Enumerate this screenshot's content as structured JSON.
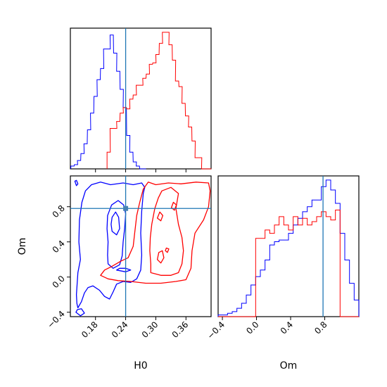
{
  "chart_data": [
    {
      "type": "histogram",
      "panel": "H0 marginal",
      "xlim": [
        0.13,
        0.41
      ],
      "truth": 0.24,
      "series": [
        {
          "color": "#0000ff",
          "bin_width": 0.0065,
          "x": [
            0.131,
            0.138,
            0.144,
            0.151,
            0.157,
            0.164,
            0.17,
            0.177,
            0.183,
            0.19,
            0.196,
            0.203,
            0.209,
            0.216,
            0.222,
            0.229,
            0.235,
            0.242,
            0.248,
            0.255,
            0.261,
            0.268,
            0.274
          ],
          "counts": [
            2,
            3,
            6,
            11,
            18,
            28,
            40,
            52,
            64,
            72,
            86,
            86,
            96,
            83,
            70,
            57,
            44,
            24,
            12,
            5,
            2,
            0,
            0
          ]
        },
        {
          "color": "#ff0000",
          "bin_width": 0.0065,
          "x": [
            0.203,
            0.209,
            0.216,
            0.222,
            0.229,
            0.235,
            0.242,
            0.248,
            0.255,
            0.261,
            0.268,
            0.274,
            0.281,
            0.287,
            0.294,
            0.3,
            0.307,
            0.313,
            0.32,
            0.326,
            0.333,
            0.339,
            0.346,
            0.352,
            0.359,
            0.365,
            0.372,
            0.378,
            0.385,
            0.391,
            0.398,
            0.404
          ],
          "counts": [
            12,
            29,
            29,
            34,
            40,
            44,
            43,
            50,
            53,
            60,
            60,
            65,
            68,
            75,
            76,
            82,
            90,
            98,
            98,
            89,
            78,
            63,
            59,
            47,
            38,
            30,
            20,
            8,
            8,
            0,
            0,
            0
          ]
        }
      ]
    },
    {
      "type": "histogram",
      "panel": "Om marginal",
      "xlim": [
        -0.45,
        1.2
      ],
      "xticks": [
        -0.4,
        0.0,
        0.4,
        0.8
      ],
      "xtick_labels": [
        "−0.4",
        "0.0",
        "0.4",
        "0.8"
      ],
      "xlabel": "Om",
      "truth": 0.78,
      "series": [
        {
          "color": "#0000ff",
          "bin_width": 0.055,
          "x": [
            -0.45,
            -0.395,
            -0.34,
            -0.285,
            -0.23,
            -0.175,
            -0.12,
            -0.065,
            -0.01,
            0.045,
            0.1,
            0.155,
            0.21,
            0.265,
            0.32,
            0.375,
            0.43,
            0.485,
            0.54,
            0.595,
            0.65,
            0.705,
            0.76,
            0.815,
            0.87,
            0.925,
            0.98,
            1.035,
            1.09,
            1.145
          ],
          "counts": [
            1,
            1,
            2,
            3,
            5,
            8,
            13,
            19,
            24,
            28,
            34,
            43,
            45,
            46,
            46,
            50,
            55,
            59,
            63,
            66,
            70,
            70,
            78,
            82,
            76,
            68,
            50,
            34,
            20,
            10
          ]
        },
        {
          "color": "#ff0000",
          "bin_width": 0.055,
          "x": [
            -0.45,
            -0.395,
            -0.34,
            -0.285,
            -0.23,
            -0.175,
            -0.12,
            -0.065,
            -0.01,
            0.045,
            0.1,
            0.155,
            0.21,
            0.265,
            0.32,
            0.375,
            0.43,
            0.485,
            0.54,
            0.595,
            0.65,
            0.705,
            0.76,
            0.815,
            0.87,
            0.925,
            0.98,
            1.035,
            1.09,
            1.145
          ],
          "counts": [
            0,
            0,
            0,
            0,
            0,
            0,
            0,
            0,
            47,
            47,
            52,
            50,
            55,
            60,
            55,
            52,
            60,
            55,
            59,
            55,
            57,
            60,
            63,
            60,
            58,
            64,
            0,
            0,
            0,
            0
          ]
        }
      ]
    },
    {
      "type": "contour",
      "panel": "H0 vs Om",
      "xlim": [
        0.13,
        0.41
      ],
      "ylim": [
        -0.45,
        1.15
      ],
      "xticks": [
        0.18,
        0.24,
        0.3,
        0.36
      ],
      "xtick_labels": [
        "0.18",
        "0.24",
        "0.30",
        "0.36"
      ],
      "yticks": [
        -0.4,
        0.0,
        0.4,
        0.8
      ],
      "ytick_labels": [
        "−0.4",
        "0.0",
        "0.4",
        "0.8"
      ],
      "xlabel": "H0",
      "ylabel": "Om",
      "truth": {
        "x": 0.24,
        "y": 0.78
      },
      "contours": [
        {
          "color": "#0000ff",
          "level": "outer",
          "points": [
            [
              0.145,
              -0.35
            ],
            [
              0.152,
              -0.28
            ],
            [
              0.158,
              -0.18
            ],
            [
              0.165,
              -0.12
            ],
            [
              0.175,
              -0.1
            ],
            [
              0.188,
              -0.15
            ],
            [
              0.198,
              -0.22
            ],
            [
              0.208,
              -0.25
            ],
            [
              0.215,
              -0.17
            ],
            [
              0.222,
              -0.08
            ],
            [
              0.235,
              -0.05
            ],
            [
              0.25,
              -0.06
            ],
            [
              0.262,
              -0.02
            ],
            [
              0.27,
              0.08
            ],
            [
              0.272,
              0.25
            ],
            [
              0.27,
              0.5
            ],
            [
              0.272,
              0.75
            ],
            [
              0.275,
              0.95
            ],
            [
              0.278,
              1.02
            ],
            [
              0.272,
              1.07
            ],
            [
              0.255,
              1.05
            ],
            [
              0.235,
              1.07
            ],
            [
              0.21,
              1.05
            ],
            [
              0.19,
              1.08
            ],
            [
              0.172,
              1.05
            ],
            [
              0.16,
              0.98
            ],
            [
              0.153,
              0.85
            ],
            [
              0.148,
              0.65
            ],
            [
              0.147,
              0.4
            ],
            [
              0.15,
              0.2
            ],
            [
              0.145,
              0.05
            ],
            [
              0.142,
              -0.2
            ],
            [
              0.143,
              -0.3
            ],
            [
              0.145,
              -0.35
            ]
          ]
        },
        {
          "color": "#0000ff",
          "level": "inner",
          "points": [
            [
              0.205,
              0.15
            ],
            [
              0.215,
              0.1
            ],
            [
              0.228,
              0.14
            ],
            [
              0.233,
              0.24
            ],
            [
              0.235,
              0.4
            ],
            [
              0.238,
              0.55
            ],
            [
              0.24,
              0.72
            ],
            [
              0.236,
              0.82
            ],
            [
              0.225,
              0.87
            ],
            [
              0.212,
              0.82
            ],
            [
              0.204,
              0.7
            ],
            [
              0.203,
              0.55
            ],
            [
              0.205,
              0.4
            ],
            [
              0.204,
              0.25
            ],
            [
              0.205,
              0.15
            ]
          ]
        },
        {
          "color": "#0000ff",
          "level": "core",
          "points": [
            [
              0.213,
              0.52
            ],
            [
              0.222,
              0.48
            ],
            [
              0.228,
              0.55
            ],
            [
              0.226,
              0.68
            ],
            [
              0.22,
              0.74
            ],
            [
              0.213,
              0.68
            ],
            [
              0.211,
              0.6
            ],
            [
              0.213,
              0.52
            ]
          ]
        },
        {
          "color": "#0000ff",
          "level": "island",
          "points": [
            [
              0.222,
              0.08
            ],
            [
              0.24,
              0.06
            ],
            [
              0.25,
              0.08
            ],
            [
              0.24,
              0.1
            ],
            [
              0.228,
              0.1
            ],
            [
              0.222,
              0.08
            ]
          ]
        },
        {
          "color": "#0000ff",
          "level": "island",
          "points": [
            [
              0.141,
              -0.4
            ],
            [
              0.15,
              -0.44
            ],
            [
              0.158,
              -0.41
            ],
            [
              0.152,
              -0.36
            ],
            [
              0.144,
              -0.37
            ],
            [
              0.141,
              -0.4
            ]
          ]
        },
        {
          "color": "#0000ff",
          "level": "island",
          "points": [
            [
              0.139,
              1.09
            ],
            [
              0.142,
              1.04
            ],
            [
              0.145,
              1.06
            ],
            [
              0.142,
              1.1
            ],
            [
              0.139,
              1.09
            ]
          ]
        },
        {
          "color": "#ff0000",
          "level": "outer",
          "points": [
            [
              0.19,
              0.02
            ],
            [
              0.205,
              -0.02
            ],
            [
              0.225,
              -0.04
            ],
            [
              0.25,
              -0.05
            ],
            [
              0.28,
              -0.07
            ],
            [
              0.31,
              -0.07
            ],
            [
              0.34,
              -0.05
            ],
            [
              0.36,
              -0.03
            ],
            [
              0.37,
              0.1
            ],
            [
              0.372,
              0.3
            ],
            [
              0.378,
              0.5
            ],
            [
              0.395,
              0.65
            ],
            [
              0.405,
              0.8
            ],
            [
              0.408,
              0.98
            ],
            [
              0.405,
              1.07
            ],
            [
              0.38,
              1.08
            ],
            [
              0.35,
              1.06
            ],
            [
              0.325,
              1.07
            ],
            [
              0.3,
              1.05
            ],
            [
              0.285,
              1.08
            ],
            [
              0.275,
              1.0
            ],
            [
              0.268,
              0.85
            ],
            [
              0.262,
              0.7
            ],
            [
              0.258,
              0.5
            ],
            [
              0.255,
              0.35
            ],
            [
              0.245,
              0.22
            ],
            [
              0.23,
              0.18
            ],
            [
              0.212,
              0.12
            ],
            [
              0.198,
              0.08
            ],
            [
              0.19,
              0.02
            ]
          ]
        },
        {
          "color": "#ff0000",
          "level": "inner",
          "points": [
            [
              0.29,
              0.05
            ],
            [
              0.31,
              0.02
            ],
            [
              0.33,
              0.02
            ],
            [
              0.345,
              0.05
            ],
            [
              0.352,
              0.15
            ],
            [
              0.355,
              0.3
            ],
            [
              0.352,
              0.45
            ],
            [
              0.345,
              0.6
            ],
            [
              0.34,
              0.78
            ],
            [
              0.345,
              0.95
            ],
            [
              0.33,
              1.02
            ],
            [
              0.312,
              0.98
            ],
            [
              0.305,
              0.9
            ],
            [
              0.298,
              0.78
            ],
            [
              0.292,
              0.6
            ],
            [
              0.289,
              0.45
            ],
            [
              0.288,
              0.3
            ],
            [
              0.29,
              0.15
            ],
            [
              0.29,
              0.05
            ]
          ]
        },
        {
          "color": "#ff0000",
          "level": "core",
          "points": [
            [
              0.303,
              0.2
            ],
            [
              0.31,
              0.16
            ],
            [
              0.316,
              0.22
            ],
            [
              0.313,
              0.3
            ],
            [
              0.306,
              0.28
            ],
            [
              0.303,
              0.2
            ]
          ]
        },
        {
          "color": "#ff0000",
          "level": "island",
          "points": [
            [
              0.303,
              0.67
            ],
            [
              0.31,
              0.64
            ],
            [
              0.314,
              0.7
            ],
            [
              0.308,
              0.74
            ],
            [
              0.303,
              0.67
            ]
          ]
        },
        {
          "color": "#ff0000",
          "level": "island",
          "points": [
            [
              0.331,
              0.79
            ],
            [
              0.337,
              0.76
            ],
            [
              0.341,
              0.82
            ],
            [
              0.335,
              0.85
            ],
            [
              0.331,
              0.79
            ]
          ]
        },
        {
          "color": "#ff0000",
          "level": "island",
          "points": [
            [
              0.319,
              0.3
            ],
            [
              0.323,
              0.28
            ],
            [
              0.326,
              0.32
            ],
            [
              0.321,
              0.33
            ],
            [
              0.319,
              0.3
            ]
          ]
        }
      ]
    }
  ]
}
